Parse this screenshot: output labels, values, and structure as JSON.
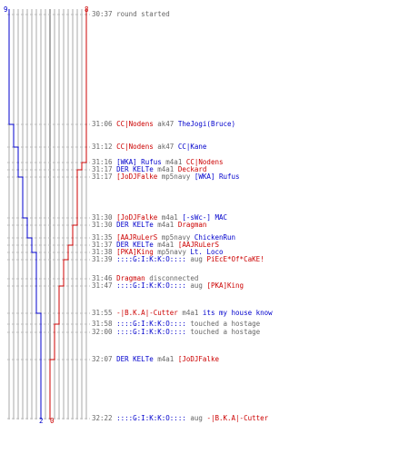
{
  "colors": {
    "blue": "#0000cc",
    "red": "#cc0000",
    "gray": "#666666",
    "grid": "#aaaaaa",
    "dash": "#bbbbbb"
  },
  "counters": {
    "blue_start": "9",
    "red_start": "8",
    "blue_end": "2",
    "red_end": "0"
  },
  "events": [
    {
      "time": "30:37",
      "parts": [
        {
          "t": "round started",
          "c": "gray"
        }
      ]
    },
    {
      "time": "31:06",
      "parts": [
        {
          "t": "CC|Nodens",
          "c": "red"
        },
        {
          "t": " ak47 ",
          "c": "gray"
        },
        {
          "t": "TheJogi(Bruce)",
          "c": "blue"
        }
      ]
    },
    {
      "time": "31:12",
      "parts": [
        {
          "t": "CC|Nodens",
          "c": "red"
        },
        {
          "t": " ak47 ",
          "c": "gray"
        },
        {
          "t": "CC|Kane",
          "c": "blue"
        }
      ]
    },
    {
      "time": "31:16",
      "parts": [
        {
          "t": "[WKA] Rufus",
          "c": "blue"
        },
        {
          "t": " m4a1 ",
          "c": "gray"
        },
        {
          "t": "CC|Nodens",
          "c": "red"
        }
      ]
    },
    {
      "time": "31:17",
      "parts": [
        {
          "t": "DER KELTe",
          "c": "blue"
        },
        {
          "t": " m4a1 ",
          "c": "gray"
        },
        {
          "t": "Deckard",
          "c": "red"
        }
      ]
    },
    {
      "time": "31:17",
      "parts": [
        {
          "t": "[JoDJFalke",
          "c": "red"
        },
        {
          "t": " mp5navy ",
          "c": "gray"
        },
        {
          "t": "[WKA] Rufus",
          "c": "blue"
        }
      ]
    },
    {
      "time": "31:30",
      "parts": [
        {
          "t": "[JoDJFalke",
          "c": "red"
        },
        {
          "t": " m4a1 ",
          "c": "gray"
        },
        {
          "t": "[-sWc-] MAC",
          "c": "blue"
        }
      ]
    },
    {
      "time": "31:30",
      "parts": [
        {
          "t": "DER KELTe",
          "c": "blue"
        },
        {
          "t": " m4a1 ",
          "c": "gray"
        },
        {
          "t": "Dragman",
          "c": "red"
        }
      ]
    },
    {
      "time": "31:35",
      "parts": [
        {
          "t": "[AAJRuLerS",
          "c": "red"
        },
        {
          "t": " mp5navy ",
          "c": "gray"
        },
        {
          "t": "ChickenRun",
          "c": "blue"
        }
      ]
    },
    {
      "time": "31:37",
      "parts": [
        {
          "t": "DER KELTe",
          "c": "blue"
        },
        {
          "t": " m4a1 ",
          "c": "gray"
        },
        {
          "t": "[AAJRuLerS",
          "c": "red"
        }
      ]
    },
    {
      "time": "31:38",
      "parts": [
        {
          "t": "[PKA]King",
          "c": "red"
        },
        {
          "t": " mp5navy ",
          "c": "gray"
        },
        {
          "t": "Lt. Loco",
          "c": "blue"
        }
      ]
    },
    {
      "time": "31:39",
      "parts": [
        {
          "t": "::::G:I:K:K:O::::",
          "c": "blue"
        },
        {
          "t": " aug ",
          "c": "gray"
        },
        {
          "t": "PiEcE*Of*CaKE!",
          "c": "red"
        }
      ]
    },
    {
      "time": "31:46",
      "parts": [
        {
          "t": "Dragman",
          "c": "red"
        },
        {
          "t": " disconnected",
          "c": "gray"
        }
      ]
    },
    {
      "time": "31:47",
      "parts": [
        {
          "t": "::::G:I:K:K:O::::",
          "c": "blue"
        },
        {
          "t": " aug ",
          "c": "gray"
        },
        {
          "t": "[PKA]King",
          "c": "red"
        }
      ]
    },
    {
      "time": "31:55",
      "parts": [
        {
          "t": "-|B.K.A|-Cutter",
          "c": "red"
        },
        {
          "t": " m4a1 ",
          "c": "gray"
        },
        {
          "t": "its my house know",
          "c": "blue"
        }
      ]
    },
    {
      "time": "31:58",
      "parts": [
        {
          "t": "::::G:I:K:K:O::::",
          "c": "blue"
        },
        {
          "t": " touched a hostage",
          "c": "gray"
        }
      ]
    },
    {
      "time": "32:00",
      "parts": [
        {
          "t": "::::G:I:K:K:O::::",
          "c": "blue"
        },
        {
          "t": " touched a hostage",
          "c": "gray"
        }
      ]
    },
    {
      "time": "32:07",
      "parts": [
        {
          "t": "DER KELTe",
          "c": "blue"
        },
        {
          "t": " m4a1 ",
          "c": "gray"
        },
        {
          "t": "[JoDJFalke",
          "c": "red"
        }
      ]
    },
    {
      "time": "32:22",
      "parts": [
        {
          "t": "::::G:I:K:K:O::::",
          "c": "blue"
        },
        {
          "t": " aug ",
          "c": "gray"
        },
        {
          "t": "-|B.K.A|-Cutter",
          "c": "red"
        }
      ]
    }
  ]
}
